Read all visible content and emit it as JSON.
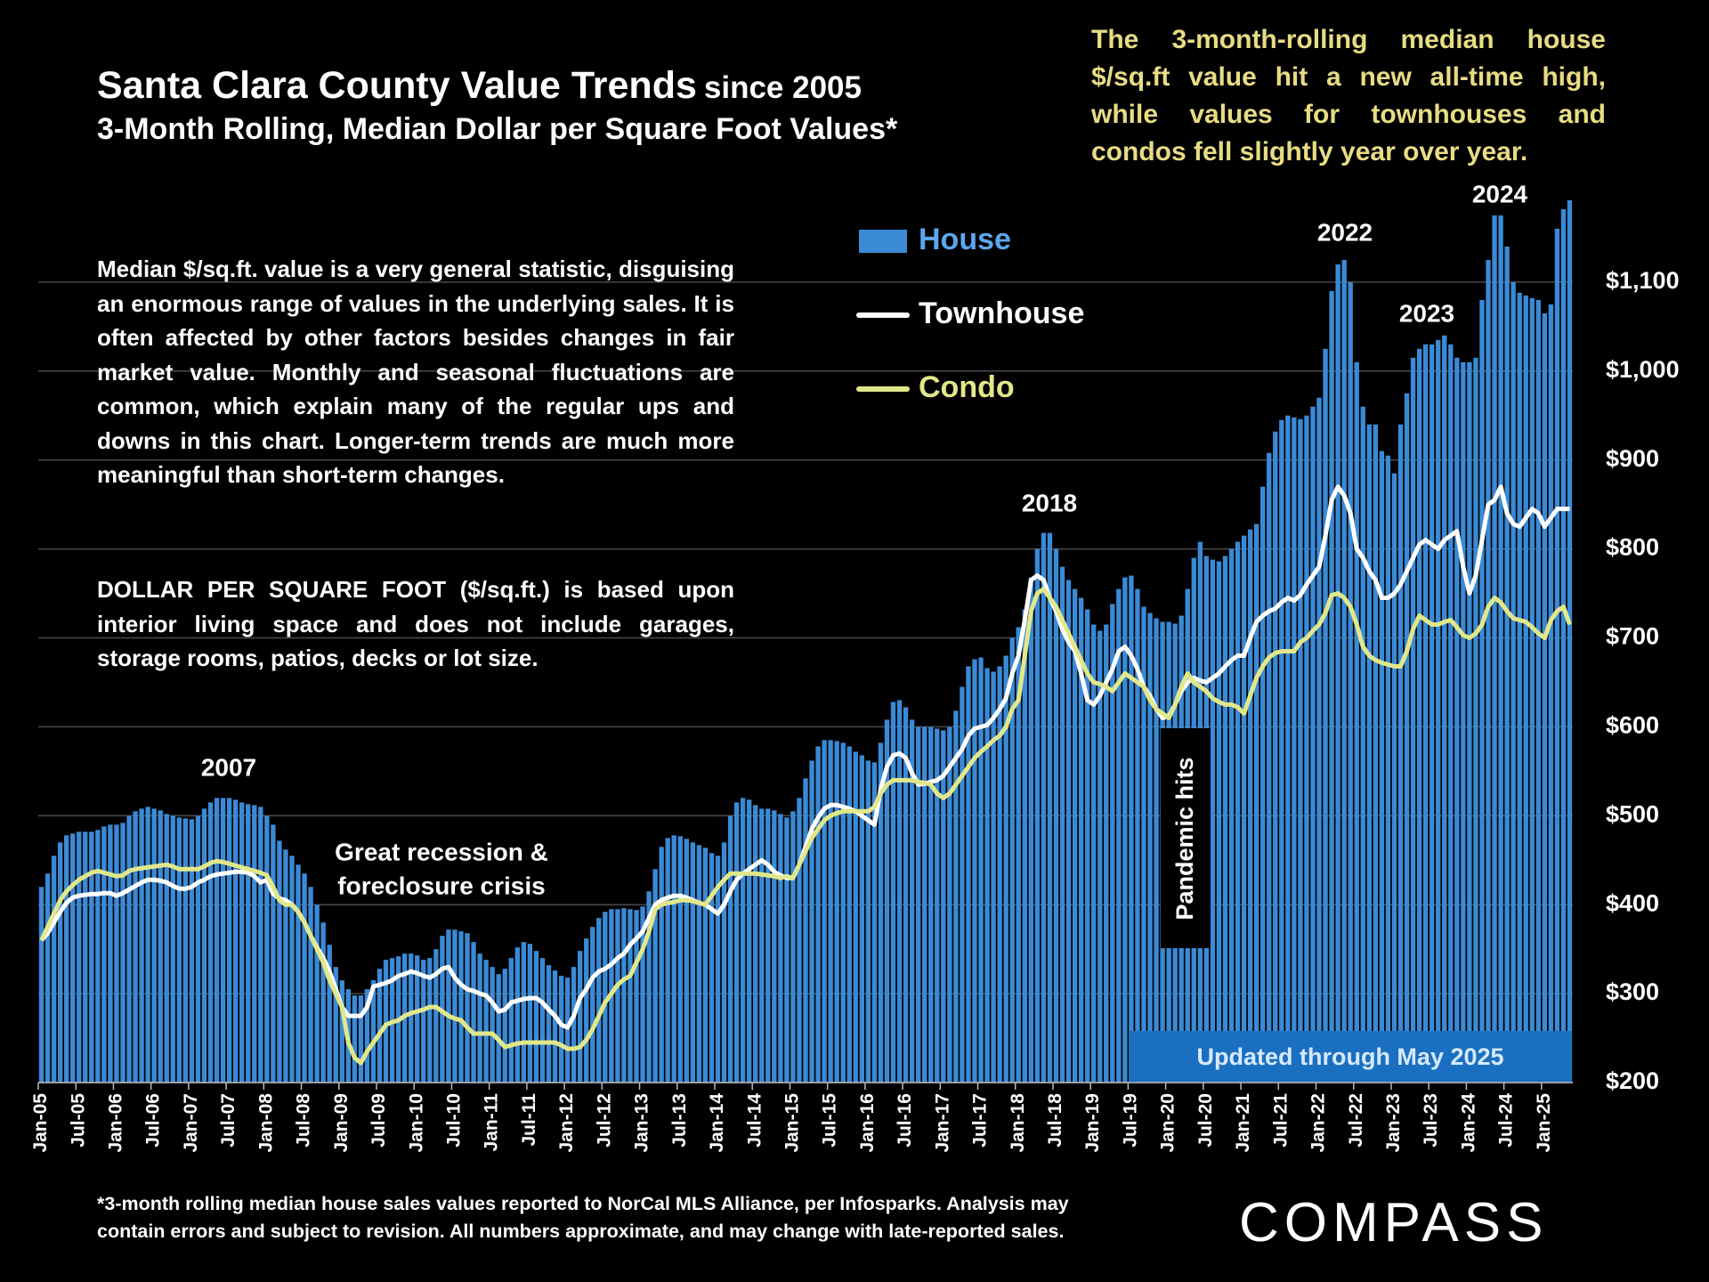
{
  "chart_data": {
    "type": "bar",
    "title": "Santa Clara County Value Trends",
    "title_suffix": "since 2005",
    "subtitle": "3-Month Rolling, Median Dollar per Square Foot Values*",
    "categories": [
      "Jan-05",
      null,
      null,
      null,
      null,
      null,
      "Jul-05",
      null,
      null,
      null,
      null,
      null,
      "Jan-06",
      null,
      null,
      null,
      null,
      null,
      "Jul-06",
      null,
      null,
      null,
      null,
      null,
      "Jan-07",
      null,
      null,
      null,
      null,
      null,
      "Jul-07",
      null,
      null,
      null,
      null,
      null,
      "Jan-08",
      null,
      null,
      null,
      null,
      null,
      "Jul-08",
      null,
      null,
      null,
      null,
      null,
      "Jan-09",
      null,
      null,
      null,
      null,
      null,
      "Jul-09",
      null,
      null,
      null,
      null,
      null,
      "Jan-10",
      null,
      null,
      null,
      null,
      null,
      "Jul-10",
      null,
      null,
      null,
      null,
      null,
      "Jan-11",
      null,
      null,
      null,
      null,
      null,
      "Jul-11",
      null,
      null,
      null,
      null,
      null,
      "Jan-12",
      null,
      null,
      null,
      null,
      null,
      "Jul-12",
      null,
      null,
      null,
      null,
      null,
      "Jan-13",
      null,
      null,
      null,
      null,
      null,
      "Jul-13",
      null,
      null,
      null,
      null,
      null,
      "Jan-14",
      null,
      null,
      null,
      null,
      null,
      "Jul-14",
      null,
      null,
      null,
      null,
      null,
      "Jan-15",
      null,
      null,
      null,
      null,
      null,
      "Jul-15",
      null,
      null,
      null,
      null,
      null,
      "Jan-16",
      null,
      null,
      null,
      null,
      null,
      "Jul-16",
      null,
      null,
      null,
      null,
      null,
      "Jan-17",
      null,
      null,
      null,
      null,
      null,
      "Jul-17",
      null,
      null,
      null,
      null,
      null,
      "Jan-18",
      null,
      null,
      null,
      null,
      null,
      "Jul-18",
      null,
      null,
      null,
      null,
      null,
      "Jan-19",
      null,
      null,
      null,
      null,
      null,
      "Jul-19",
      null,
      null,
      null,
      null,
      null,
      "Jan-20",
      null,
      null,
      null,
      null,
      null,
      "Jul-20",
      null,
      null,
      null,
      null,
      null,
      "Jan-21",
      null,
      null,
      null,
      null,
      null,
      "Jul-21",
      null,
      null,
      null,
      null,
      null,
      "Jan-22",
      null,
      null,
      null,
      null,
      null,
      "Jul-22",
      null,
      null,
      null,
      null,
      null,
      "Jan-23",
      null,
      null,
      null,
      null,
      null,
      "Jul-23",
      null,
      null,
      null,
      null,
      null,
      "Jan-24",
      null,
      null,
      null,
      null,
      null,
      "Jul-24",
      null,
      null,
      null,
      null,
      null,
      "Jan-25",
      null,
      null,
      null,
      null
    ],
    "series": [
      {
        "name": "House",
        "color": "#3a8ad6",
        "type": "bar",
        "values": [
          420,
          435,
          455,
          470,
          478,
          480,
          482,
          482,
          482,
          484,
          488,
          490,
          490,
          492,
          500,
          505,
          508,
          510,
          508,
          506,
          502,
          500,
          498,
          497,
          496,
          500,
          508,
          515,
          520,
          520,
          520,
          518,
          515,
          513,
          512,
          510,
          500,
          490,
          472,
          462,
          455,
          445,
          435,
          420,
          400,
          380,
          355,
          330,
          315,
          305,
          298,
          298,
          305,
          315,
          328,
          338,
          340,
          342,
          345,
          345,
          343,
          338,
          340,
          350,
          365,
          372,
          372,
          370,
          368,
          358,
          345,
          338,
          330,
          322,
          328,
          340,
          352,
          358,
          356,
          348,
          340,
          332,
          326,
          320,
          318,
          330,
          348,
          362,
          375,
          385,
          392,
          395,
          395,
          396,
          395,
          394,
          398,
          415,
          440,
          465,
          475,
          478,
          477,
          474,
          470,
          467,
          464,
          458,
          455,
          470,
          500,
          515,
          520,
          518,
          512,
          508,
          508,
          506,
          502,
          498,
          505,
          520,
          542,
          562,
          578,
          585,
          585,
          584,
          582,
          578,
          572,
          568,
          562,
          560,
          582,
          608,
          628,
          630,
          622,
          608,
          600,
          600,
          600,
          598,
          596,
          600,
          618,
          645,
          668,
          676,
          678,
          666,
          662,
          668,
          680,
          700,
          712,
          732,
          768,
          800,
          818,
          818,
          800,
          780,
          765,
          755,
          745,
          732,
          715,
          708,
          715,
          738,
          755,
          768,
          770,
          755,
          735,
          728,
          722,
          718,
          718,
          716,
          725,
          755,
          790,
          808,
          792,
          788,
          786,
          792,
          800,
          808,
          815,
          822,
          828,
          870,
          908,
          932,
          945,
          950,
          948,
          946,
          950,
          960,
          970,
          1025,
          1090,
          1120,
          1125,
          1100,
          1010,
          960,
          940,
          940,
          910,
          905,
          885,
          940,
          975,
          1015,
          1025,
          1030,
          1030,
          1035,
          1040,
          1030,
          1015,
          1010,
          1010,
          1015,
          1080,
          1125,
          1175,
          1175,
          1140,
          1100,
          1088,
          1085,
          1082,
          1080,
          1065,
          1075,
          1160,
          1182,
          1192
        ]
      },
      {
        "name": "Townhouse",
        "color": "#ffffff",
        "type": "line",
        "values": [
          360,
          368,
          380,
          392,
          402,
          408,
          410,
          411,
          412,
          412,
          413,
          413,
          410,
          413,
          417,
          421,
          425,
          428,
          428,
          427,
          425,
          421,
          418,
          418,
          420,
          425,
          428,
          432,
          434,
          435,
          436,
          437,
          437,
          436,
          432,
          425,
          428,
          412,
          407,
          405,
          400,
          392,
          380,
          365,
          352,
          340,
          325,
          305,
          285,
          275,
          275,
          275,
          285,
          308,
          310,
          312,
          315,
          320,
          322,
          325,
          323,
          320,
          318,
          322,
          328,
          330,
          318,
          310,
          305,
          303,
          300,
          298,
          290,
          280,
          282,
          290,
          292,
          294,
          295,
          295,
          290,
          282,
          275,
          265,
          262,
          275,
          295,
          305,
          318,
          325,
          328,
          333,
          340,
          345,
          355,
          362,
          370,
          385,
          400,
          405,
          408,
          410,
          410,
          408,
          405,
          402,
          400,
          395,
          390,
          400,
          415,
          428,
          435,
          440,
          445,
          450,
          445,
          437,
          433,
          430,
          430,
          445,
          465,
          485,
          498,
          508,
          512,
          512,
          510,
          508,
          505,
          500,
          495,
          490,
          530,
          555,
          568,
          570,
          565,
          548,
          535,
          536,
          538,
          540,
          545,
          555,
          565,
          575,
          590,
          598,
          600,
          602,
          610,
          620,
          632,
          660,
          680,
          720,
          765,
          770,
          765,
          745,
          730,
          710,
          695,
          685,
          660,
          630,
          625,
          635,
          650,
          665,
          685,
          690,
          680,
          665,
          645,
          635,
          620,
          610,
          612,
          625,
          640,
          650,
          655,
          652,
          650,
          655,
          660,
          668,
          675,
          680,
          680,
          700,
          718,
          725,
          730,
          733,
          740,
          745,
          742,
          748,
          760,
          770,
          780,
          815,
          855,
          870,
          860,
          840,
          800,
          790,
          775,
          765,
          745,
          745,
          750,
          760,
          775,
          790,
          805,
          810,
          805,
          800,
          810,
          815,
          820,
          780,
          750,
          770,
          810,
          850,
          855,
          870,
          840,
          828,
          825,
          835,
          845,
          840,
          825,
          835,
          845,
          845,
          845
        ]
      },
      {
        "name": "Condo",
        "color": "#e2e88a",
        "type": "line",
        "values": [
          360,
          375,
          390,
          405,
          415,
          422,
          428,
          432,
          436,
          438,
          436,
          434,
          432,
          433,
          438,
          440,
          441,
          442,
          443,
          444,
          445,
          443,
          440,
          440,
          440,
          440,
          443,
          447,
          449,
          448,
          446,
          444,
          442,
          440,
          438,
          436,
          433,
          420,
          405,
          400,
          400,
          392,
          380,
          365,
          350,
          335,
          315,
          300,
          285,
          245,
          228,
          222,
          235,
          245,
          255,
          265,
          268,
          270,
          275,
          278,
          280,
          282,
          285,
          285,
          280,
          275,
          272,
          270,
          262,
          255,
          255,
          255,
          255,
          248,
          240,
          242,
          244,
          245,
          245,
          245,
          245,
          245,
          245,
          242,
          238,
          238,
          240,
          248,
          260,
          275,
          290,
          300,
          310,
          316,
          320,
          335,
          350,
          370,
          395,
          400,
          402,
          403,
          405,
          405,
          404,
          402,
          400,
          410,
          420,
          428,
          435,
          435,
          435,
          435,
          435,
          434,
          433,
          432,
          430,
          432,
          430,
          445,
          460,
          475,
          485,
          495,
          500,
          503,
          505,
          505,
          505,
          505,
          505,
          510,
          525,
          535,
          540,
          540,
          540,
          540,
          538,
          537,
          535,
          525,
          520,
          525,
          535,
          545,
          555,
          565,
          572,
          578,
          585,
          590,
          600,
          620,
          630,
          680,
          730,
          750,
          755,
          745,
          735,
          720,
          705,
          690,
          675,
          660,
          650,
          648,
          645,
          640,
          650,
          660,
          655,
          650,
          645,
          630,
          620,
          615,
          610,
          625,
          645,
          660,
          650,
          645,
          640,
          632,
          628,
          625,
          625,
          622,
          615,
          635,
          655,
          668,
          678,
          683,
          685,
          685,
          685,
          695,
          700,
          708,
          715,
          728,
          748,
          750,
          745,
          735,
          715,
          690,
          680,
          675,
          672,
          670,
          668,
          668,
          685,
          710,
          725,
          720,
          715,
          715,
          718,
          720,
          712,
          703,
          700,
          705,
          715,
          735,
          745,
          740,
          730,
          722,
          720,
          718,
          712,
          705,
          700,
          720,
          730,
          735,
          715
        ]
      }
    ],
    "ylim": [
      200,
      1200
    ],
    "yticks": [
      {
        "value": 200,
        "label": "$200"
      },
      {
        "value": 300,
        "label": "$300"
      },
      {
        "value": 400,
        "label": "$400"
      },
      {
        "value": 500,
        "label": "$500"
      },
      {
        "value": 600,
        "label": "$600"
      },
      {
        "value": 700,
        "label": "$700"
      },
      {
        "value": 800,
        "label": "$800"
      },
      {
        "value": 900,
        "label": "$900"
      },
      {
        "value": 1000,
        "label": "$1,000"
      },
      {
        "value": 1100,
        "label": "$1,100"
      }
    ],
    "grid": true,
    "legend": "top-center",
    "annotations": [
      "2007",
      "2018",
      "2022",
      "2023",
      "2024",
      "Great recession &",
      "foreclosure crisis",
      "Pandemic hits",
      "Updated through May 2025"
    ],
    "callout": "The 3-month-rolling median house $/sq.ft value hit a new all-time high, while values for townhouses and condos fell slightly year over year.",
    "notes": [
      "Median $/sq.ft. value is a very general statistic, disguising an enormous range of values in the underlying sales. It is often affected by other factors besides changes in fair market value. Monthly and seasonal fluctuations are common, which explain many of the regular ups and downs in this chart. Longer-term trends are much more meaningful than short-term changes.",
      "DOLLAR PER SQUARE FOOT ($/sq.ft.) is based upon interior living space and does not include garages, storage rooms, patios, decks or lot size."
    ],
    "footnote": [
      "*3-month rolling median house sales values reported to NorCal MLS Alliance, per Infosparks. Analysis may",
      "contain errors and subject to revision. All numbers approximate, and may change with late-reported sales."
    ],
    "brand": "COMPASS"
  }
}
